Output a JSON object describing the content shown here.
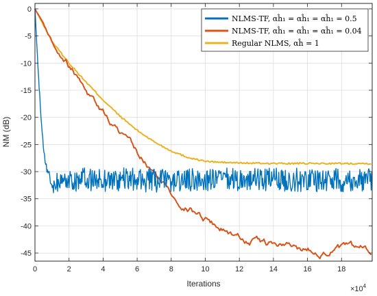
{
  "chart_data": {
    "type": "line",
    "xlabel": "Iterations",
    "ylabel": "NM (dB)",
    "x_multiplier": "×10",
    "x_multiplier_exp": "4",
    "xlim": [
      0,
      198000
    ],
    "ylim": [
      -46.5,
      1
    ],
    "xticks": [
      0,
      20000,
      40000,
      60000,
      80000,
      100000,
      120000,
      140000,
      160000,
      180000
    ],
    "xtick_labels": [
      "0",
      "2",
      "4",
      "6",
      "8",
      "10",
      "12",
      "14",
      "16",
      "18"
    ],
    "yticks": [
      0,
      -5,
      -10,
      -15,
      -20,
      -25,
      -30,
      -35,
      -40,
      -45
    ],
    "ytick_labels": [
      "0",
      "-5",
      "-10",
      "-15",
      "-20",
      "-25",
      "-30",
      "-35",
      "-40",
      "-45"
    ],
    "grid": true,
    "legend_position": "top-right",
    "series": [
      {
        "name": "NLMS-TF, αĥ₁ = αĥ₁ = αĥ₁ = 0.5",
        "color": "#0072BD",
        "x": [
          0,
          2000,
          4000,
          6000,
          8000,
          10000,
          12000,
          20000,
          40000,
          60000,
          80000,
          100000,
          120000,
          140000,
          160000,
          180000,
          198000
        ],
        "y": [
          0,
          -12,
          -22,
          -28,
          -31,
          -32,
          -32,
          -31.5,
          -31.5,
          -31.5,
          -31.8,
          -31.5,
          -31.5,
          -31.5,
          -31.5,
          -31.5,
          -31.5
        ],
        "noise": 2.2
      },
      {
        "name": "NLMS-TF, αĥ₁ = αĥ₁ = αĥ₁ = 0.04",
        "color": "#D95319",
        "x": [
          0,
          10000,
          20000,
          30000,
          40000,
          50000,
          60000,
          70000,
          80000,
          90000,
          100000,
          110000,
          120000,
          130000,
          140000,
          150000,
          160000,
          170000,
          180000,
          190000,
          198000
        ],
        "y": [
          0,
          -5.5,
          -10,
          -14.5,
          -19,
          -23,
          -27,
          -30.5,
          -34,
          -36.5,
          -38.5,
          -40.5,
          -42,
          -43,
          -43.5,
          -44,
          -44.3,
          -44.5,
          -44.3,
          -44.5,
          -44.5
        ],
        "noise": 0.8
      },
      {
        "name": "Regular NLMS, αĥ = 1",
        "color": "#EDB120",
        "x": [
          0,
          10000,
          20000,
          30000,
          40000,
          50000,
          60000,
          70000,
          80000,
          90000,
          100000,
          110000,
          120000,
          140000,
          160000,
          180000,
          198000
        ],
        "y": [
          0,
          -6,
          -10,
          -13.5,
          -16.8,
          -19.8,
          -22.4,
          -24.5,
          -26.2,
          -27.4,
          -28.1,
          -28.3,
          -28.4,
          -28.5,
          -28.5,
          -28.5,
          -28.5
        ],
        "noise": 0.15
      }
    ]
  }
}
